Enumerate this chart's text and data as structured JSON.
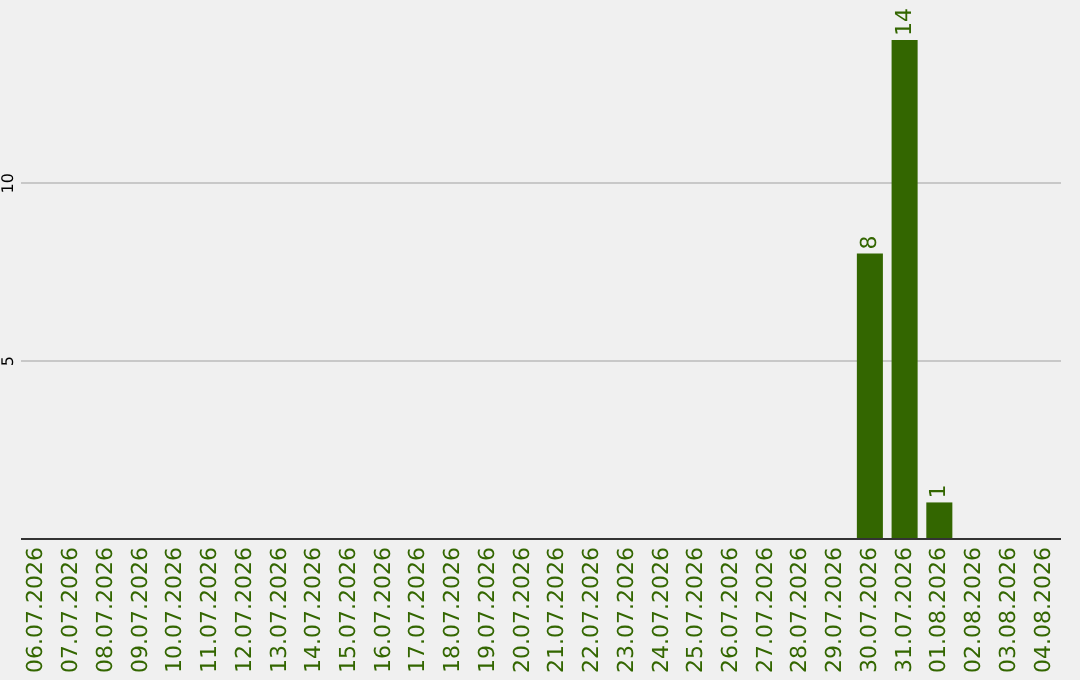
{
  "chart_data": {
    "type": "bar",
    "categories": [
      "06.07.2026",
      "07.07.2026",
      "08.07.2026",
      "09.07.2026",
      "10.07.2026",
      "11.07.2026",
      "12.07.2026",
      "13.07.2026",
      "14.07.2026",
      "15.07.2026",
      "16.07.2026",
      "17.07.2026",
      "18.07.2026",
      "19.07.2026",
      "20.07.2026",
      "21.07.2026",
      "22.07.2026",
      "23.07.2026",
      "24.07.2026",
      "25.07.2026",
      "26.07.2026",
      "27.07.2026",
      "28.07.2026",
      "29.07.2026",
      "30.07.2026",
      "31.07.2026",
      "01.08.2026",
      "02.08.2026",
      "03.08.2026",
      "04.08.2026"
    ],
    "values": [
      0,
      0,
      0,
      0,
      0,
      0,
      0,
      0,
      0,
      0,
      0,
      0,
      0,
      0,
      0,
      0,
      0,
      0,
      0,
      0,
      0,
      0,
      0,
      0,
      8,
      14,
      1,
      0,
      0,
      0
    ],
    "value_labels": [
      null,
      null,
      null,
      null,
      null,
      null,
      null,
      null,
      null,
      null,
      null,
      null,
      null,
      null,
      null,
      null,
      null,
      null,
      null,
      null,
      null,
      null,
      null,
      null,
      "8",
      "14",
      "1",
      null,
      null,
      null
    ],
    "color": "#336600",
    "ylim": [
      0,
      14
    ],
    "yticks": [
      5,
      10
    ],
    "grid": "y"
  }
}
